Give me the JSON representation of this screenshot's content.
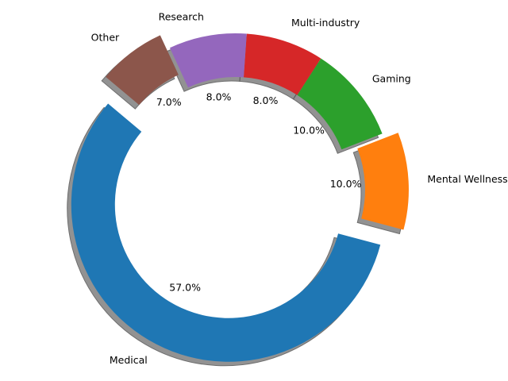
{
  "chart_data": {
    "type": "pie",
    "title": "",
    "slices": [
      {
        "label": "Medical",
        "value": 57.0,
        "pct_label": "57.0%",
        "color": "#1f77b4",
        "exploded": true
      },
      {
        "label": "Mental Wellness",
        "value": 10.0,
        "pct_label": "10.0%",
        "color": "#ff7f0e",
        "exploded": true
      },
      {
        "label": "Gaming",
        "value": 10.0,
        "pct_label": "10.0%",
        "color": "#2ca02c",
        "exploded": false
      },
      {
        "label": "Multi-industry",
        "value": 8.0,
        "pct_label": "8.0%",
        "color": "#d62728",
        "exploded": false
      },
      {
        "label": "Research",
        "value": 8.0,
        "pct_label": "8.0%",
        "color": "#9467bd",
        "exploded": false
      },
      {
        "label": "Other",
        "value": 7.0,
        "pct_label": "7.0%",
        "color": "#8c564b",
        "exploded": true
      }
    ],
    "donut": true,
    "shadow": true,
    "start_angle_deg": 140,
    "legend": "none"
  }
}
